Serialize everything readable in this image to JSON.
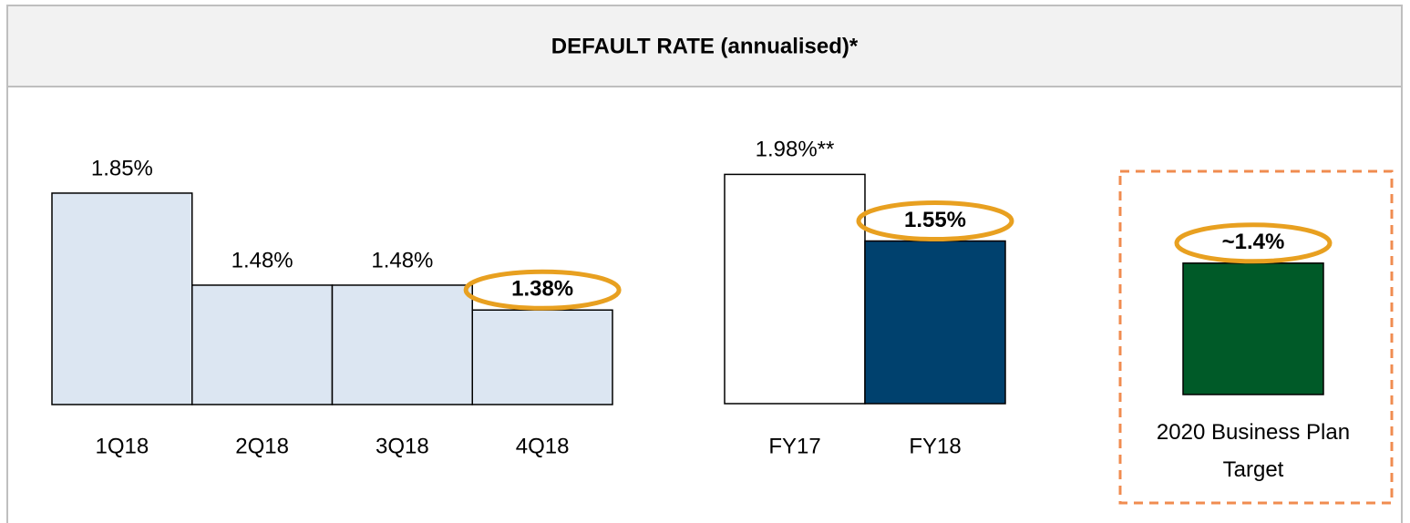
{
  "title": "DEFAULT RATE (annualised)*",
  "chart_data": [
    {
      "type": "bar",
      "categories": [
        "1Q18",
        "2Q18",
        "3Q18",
        "4Q18"
      ],
      "values": [
        1.85,
        1.48,
        1.48,
        1.38
      ],
      "value_labels": [
        "1.85%",
        "1.48%",
        "1.48%",
        "1.38%"
      ],
      "colors": [
        "#dce6f2",
        "#dce6f2",
        "#dce6f2",
        "#dce6f2"
      ],
      "ylim": [
        1.0,
        2.0
      ]
    },
    {
      "type": "bar",
      "categories": [
        "FY17",
        "FY18"
      ],
      "values": [
        1.98,
        1.55
      ],
      "value_labels": [
        "1.98%**",
        "1.55%"
      ],
      "colors": [
        "#ffffff",
        "#00416e"
      ],
      "ylim": [
        0.5,
        2.0
      ]
    },
    {
      "type": "bar",
      "categories": [
        "2020 Business Plan Target"
      ],
      "values": [
        1.4
      ],
      "value_labels": [
        "~1.4%"
      ],
      "colors": [
        "#005a28"
      ],
      "ylim": [
        0,
        2.0
      ]
    }
  ]
}
